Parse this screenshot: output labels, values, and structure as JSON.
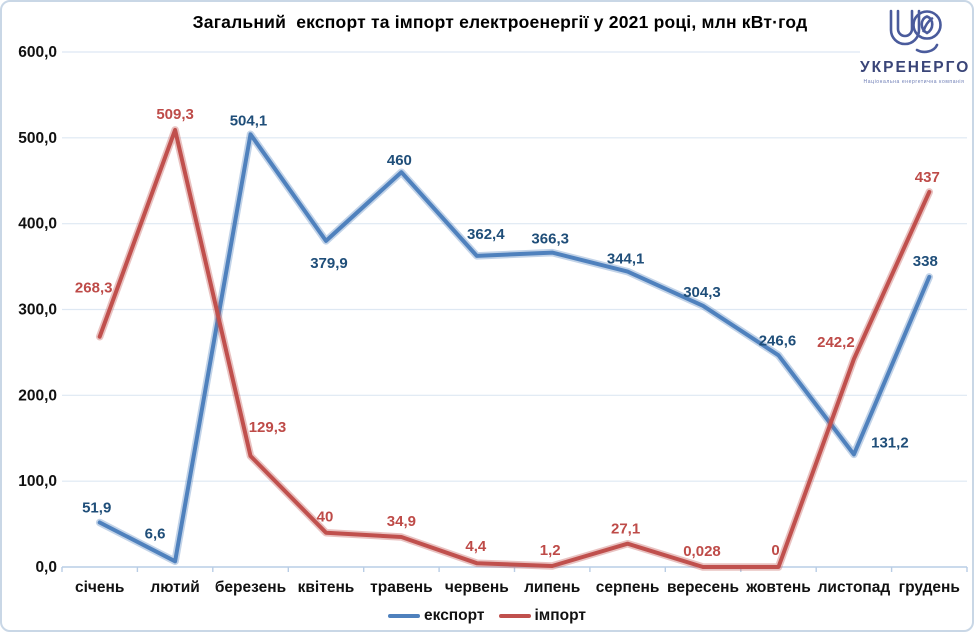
{
  "title": "Загальний  експорт та імпорт електроенергії у 2021 році, млн кВт·год",
  "logo": {
    "name": "УКРЕНЕРГО",
    "tagline": "Національна енергетична компанія",
    "brand_color": "#4A5B9C",
    "text_color": "#3A4578"
  },
  "chart_data": {
    "type": "line",
    "title": "Загальний  експорт та імпорт електроенергії у 2021 році, млн кВт·год",
    "categories": [
      "січень",
      "лютий",
      "березень",
      "квітень",
      "травень",
      "червень",
      "липень",
      "серпень",
      "вересень",
      "жовтень",
      "листопад",
      "грудень"
    ],
    "series": [
      {
        "name": "експорт",
        "color": "#4F81BD",
        "label_color": "#1F4E79",
        "values": [
          51.9,
          6.6,
          504.1,
          379.9,
          460,
          362.4,
          366.3,
          344.1,
          304.3,
          246.6,
          131.2,
          338
        ],
        "labels": [
          "51,9",
          "6,6",
          "504,1",
          "379,9",
          "460",
          "362,4",
          "366,3",
          "344,1",
          "304,3",
          "246,6",
          "131,2",
          "338"
        ]
      },
      {
        "name": "імпорт",
        "color": "#C0504D",
        "label_color": "#BE4B48",
        "values": [
          268.3,
          509.3,
          129.3,
          40,
          34.9,
          4.4,
          1.2,
          27.1,
          0.028,
          0,
          242.2,
          437
        ],
        "labels": [
          "268,3",
          "509,3",
          "129,3",
          "40",
          "34,9",
          "4,4",
          "1,2",
          "27,1",
          "0,028",
          "0",
          "242,2",
          "437"
        ]
      }
    ],
    "xlabel": "",
    "ylabel": "",
    "ylim": [
      0,
      600
    ],
    "y_ticks": [
      "0,0",
      "100,0",
      "200,0",
      "300,0",
      "400,0",
      "500,0",
      "600,0"
    ],
    "grid": true,
    "grid_color": "#DEE8F3",
    "axis_color": "#B9CDE5",
    "legend_position": "bottom"
  }
}
